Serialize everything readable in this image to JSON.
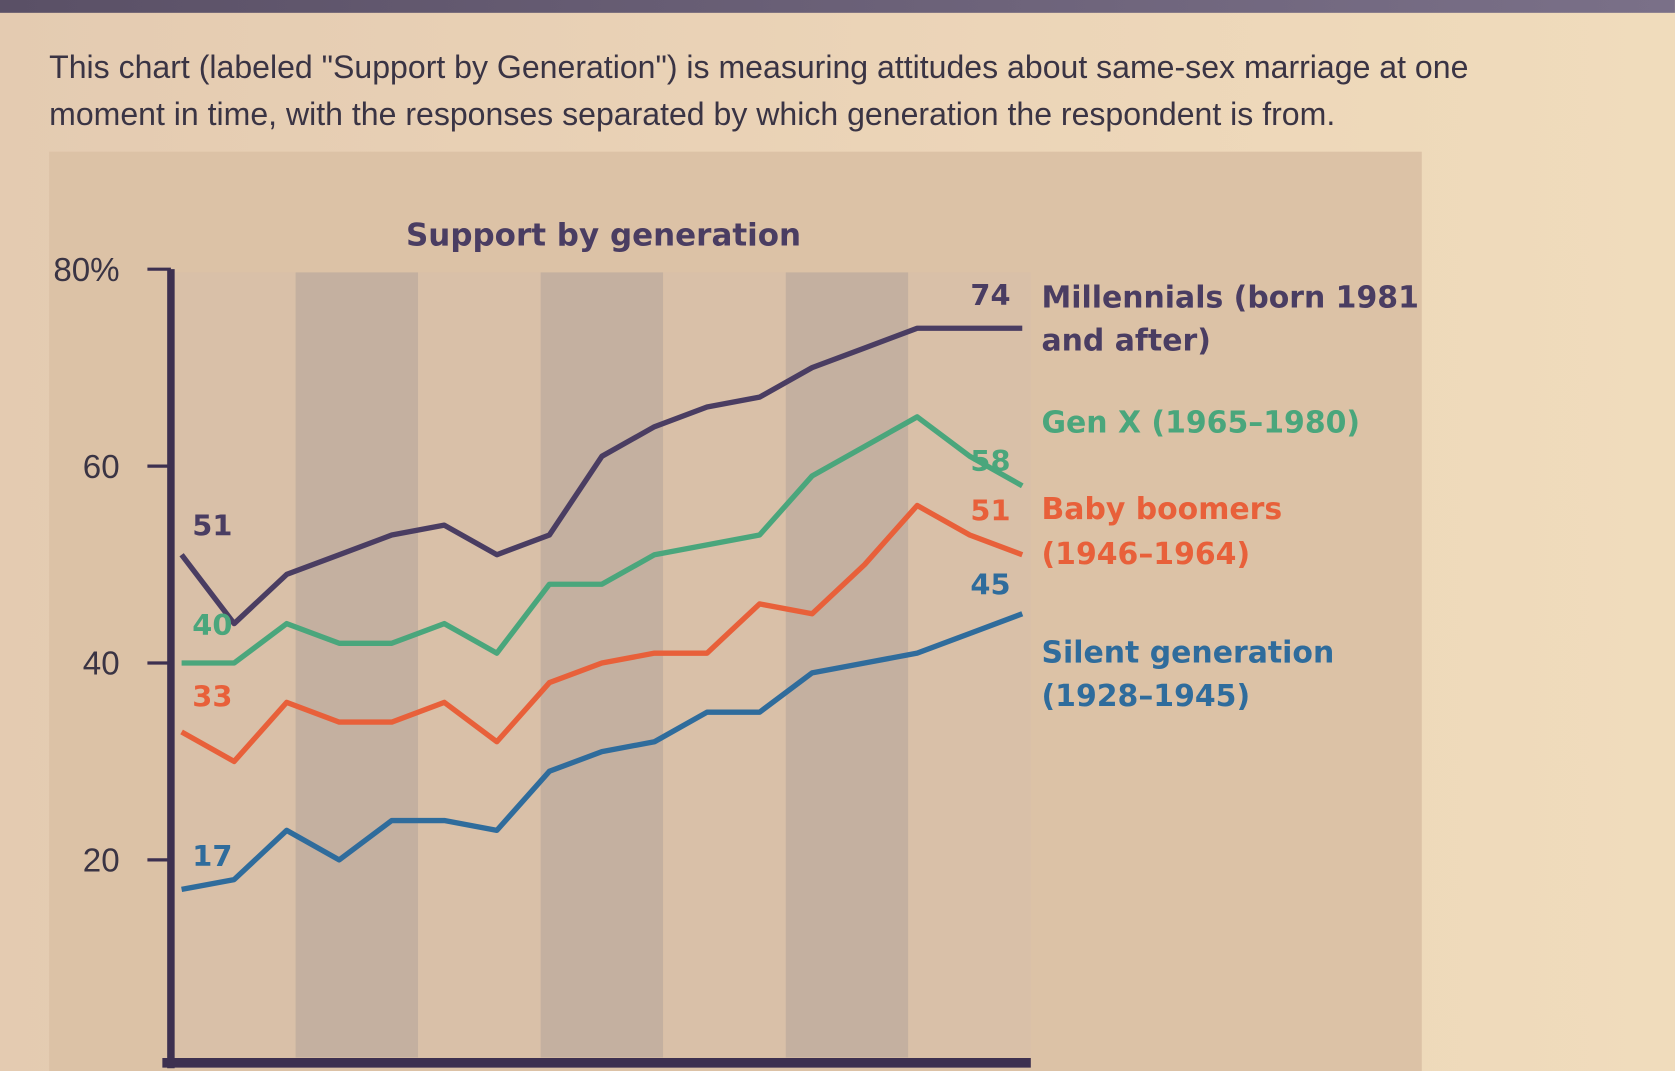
{
  "caption": "This chart (labeled \"Support by Generation\") is measuring attitudes about same-sex marriage at one moment in time, with the responses separated by which generation the respondent is from.",
  "chart_data": {
    "type": "line",
    "title": "Support by generation",
    "xlabel": "",
    "ylabel": "",
    "ylim": [
      0,
      80
    ],
    "yticks": [
      20,
      40,
      60,
      80
    ],
    "ytick_labels": [
      "20",
      "40",
      "60",
      "80%"
    ],
    "grid": false,
    "background_bands": true,
    "legend_placement": "right (direct labels)",
    "series": [
      {
        "name": "Millennials (born 1981 and after)",
        "name_lines": [
          "Millennials (born 1981",
          "and after)"
        ],
        "color": "#4a3d62",
        "start_label": "51",
        "end_label": "74",
        "values": [
          51,
          44,
          49,
          51,
          53,
          54,
          51,
          53,
          61,
          64,
          66,
          67,
          70,
          72,
          74,
          74,
          74
        ]
      },
      {
        "name": "Gen X (1965–1980)",
        "name_lines": [
          "Gen X (1965–1980)"
        ],
        "color": "#4aa67c",
        "start_label": "40",
        "end_label": "58",
        "values": [
          40,
          40,
          44,
          42,
          42,
          44,
          41,
          48,
          48,
          51,
          52,
          53,
          59,
          62,
          65,
          61,
          58
        ]
      },
      {
        "name": "Baby boomers (1946–1964)",
        "name_lines": [
          "Baby boomers",
          "(1946–1964)"
        ],
        "color": "#e8603a",
        "start_label": "33",
        "end_label": "51",
        "values": [
          33,
          30,
          36,
          34,
          34,
          36,
          32,
          38,
          40,
          41,
          41,
          46,
          45,
          50,
          56,
          53,
          51
        ]
      },
      {
        "name": "Silent generation (1928–1945)",
        "name_lines": [
          "Silent generation",
          "(1928–1945)"
        ],
        "color": "#2f6c9c",
        "start_label": "17",
        "end_label": "45",
        "values": [
          17,
          18,
          23,
          20,
          24,
          24,
          23,
          29,
          31,
          32,
          35,
          35,
          39,
          40,
          41,
          43,
          45
        ]
      }
    ]
  }
}
